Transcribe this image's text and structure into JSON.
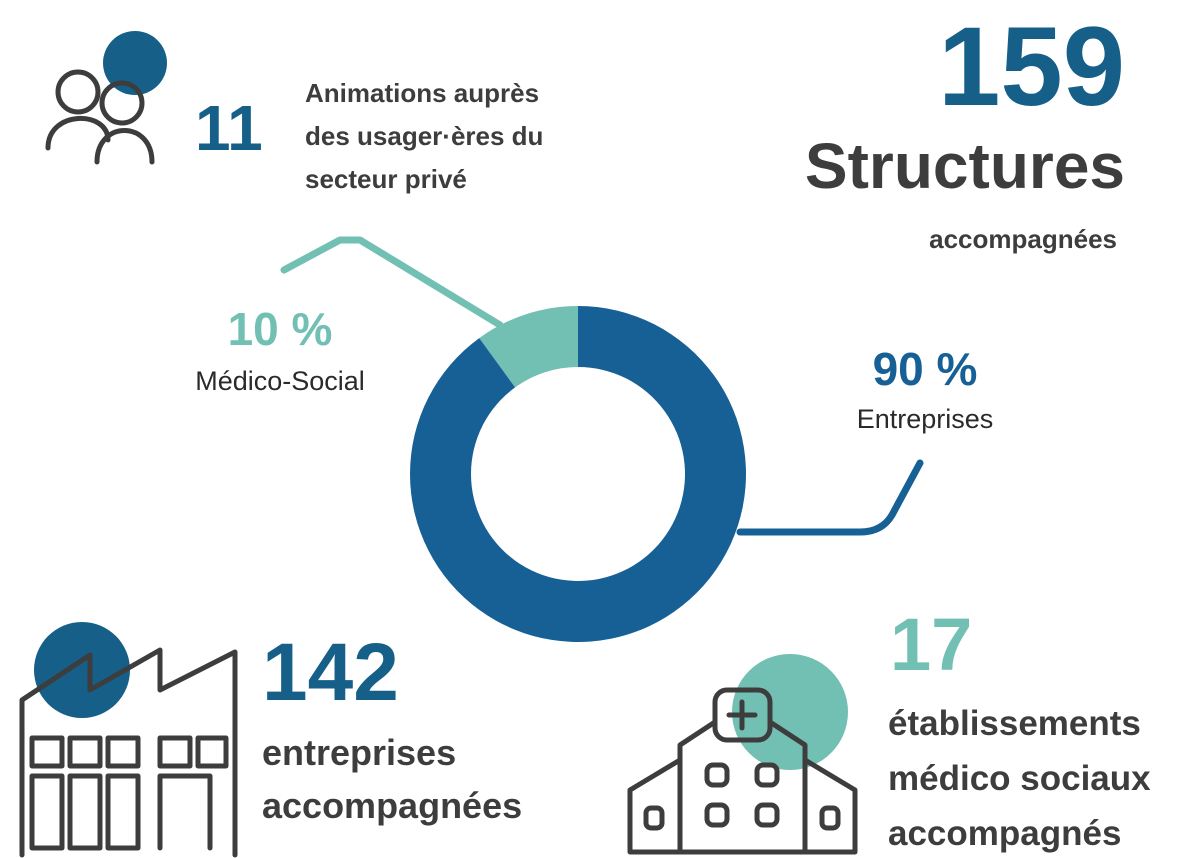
{
  "chart_data": {
    "type": "pie",
    "categories": [
      "Médico-Social",
      "Entreprises"
    ],
    "values": [
      10,
      90
    ],
    "value_labels": [
      "10 %",
      "90 %"
    ],
    "colors": [
      "#72bfb3",
      "#176096"
    ]
  },
  "stats": [
    {
      "value": 11,
      "lines": [
        "Animations auprès",
        "des usager·ères du",
        "secteur privé"
      ]
    },
    {
      "value": 159,
      "lines": [
        "Structures",
        "accompagnées"
      ]
    },
    {
      "value": 142,
      "lines": [
        "entreprises",
        "accompagnées"
      ]
    },
    {
      "value": 17,
      "lines": [
        "établissements",
        "médico sociaux",
        "accompagnés"
      ]
    }
  ]
}
